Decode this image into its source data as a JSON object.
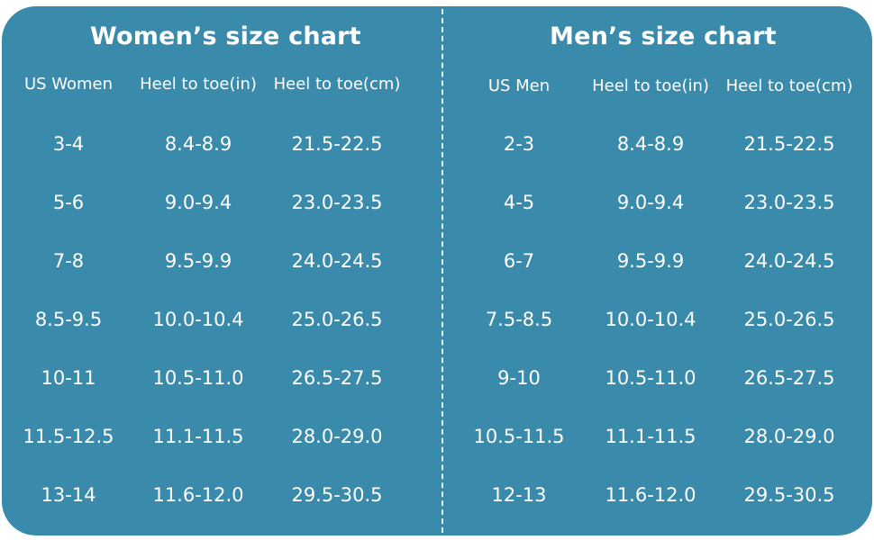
{
  "colors": {
    "card_background": "#3a8aab",
    "text": "#ffffff",
    "divider": "#e6f1f6"
  },
  "women": {
    "title": "Women’s  size chart",
    "headers": [
      "US Women",
      "Heel to toe(in)",
      "Heel to toe(cm)"
    ],
    "rows": [
      [
        "3-4",
        "8.4-8.9",
        "21.5-22.5"
      ],
      [
        "5-6",
        "9.0-9.4",
        "23.0-23.5"
      ],
      [
        "7-8",
        "9.5-9.9",
        "24.0-24.5"
      ],
      [
        "8.5-9.5",
        "10.0-10.4",
        "25.0-26.5"
      ],
      [
        "10-11",
        "10.5-11.0",
        "26.5-27.5"
      ],
      [
        "11.5-12.5",
        "11.1-11.5",
        "28.0-29.0"
      ],
      [
        "13-14",
        "11.6-12.0",
        "29.5-30.5"
      ]
    ]
  },
  "men": {
    "title": "Men’s  size chart",
    "headers": [
      "US Men",
      "Heel to toe(in)",
      "Heel to toe(cm)"
    ],
    "rows": [
      [
        "2-3",
        "8.4-8.9",
        "21.5-22.5"
      ],
      [
        "4-5",
        "9.0-9.4",
        "23.0-23.5"
      ],
      [
        "6-7",
        "9.5-9.9",
        "24.0-24.5"
      ],
      [
        "7.5-8.5",
        "10.0-10.4",
        "25.0-26.5"
      ],
      [
        "9-10",
        "10.5-11.0",
        "26.5-27.5"
      ],
      [
        "10.5-11.5",
        "11.1-11.5",
        "28.0-29.0"
      ],
      [
        "12-13",
        "11.6-12.0",
        "29.5-30.5"
      ]
    ]
  }
}
